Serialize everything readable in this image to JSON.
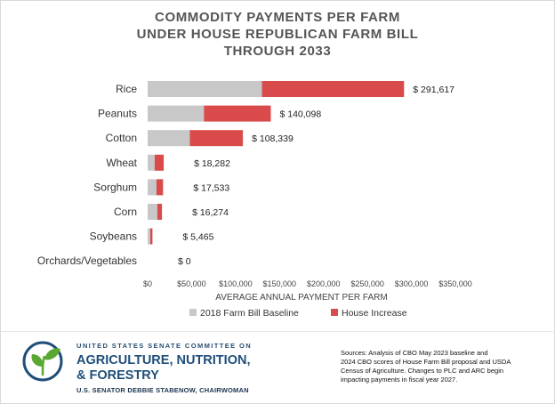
{
  "header": {
    "title_lines": [
      "COMMODITY PAYMENTS PER FARM",
      "UNDER HOUSE REPUBLICAN FARM BILL",
      "THROUGH 2033"
    ]
  },
  "chart_data": {
    "type": "bar",
    "orientation": "horizontal",
    "stacked": true,
    "categories": [
      "Rice",
      "Peanuts",
      "Cotton",
      "Wheat",
      "Sorghum",
      "Corn",
      "Soybeans",
      "Orchards/Vegetables"
    ],
    "series": [
      {
        "name": "2018 Farm Bill Baseline",
        "color": "#c8c8c8",
        "values": [
          130000,
          64000,
          48000,
          8000,
          10000,
          11000,
          3000,
          0
        ]
      },
      {
        "name": "House Increase",
        "color": "#d94b4b",
        "values": [
          161617,
          76098,
          60339,
          10282,
          7533,
          5274,
          2465,
          0
        ]
      }
    ],
    "data_labels": [
      "$ 291,617",
      "$ 140,098",
      "$ 108,339",
      "$ 18,282",
      "$ 17,533",
      "$ 16,274",
      "$ 5,465",
      "$ 0"
    ],
    "xlabel": "AVERAGE ANNUAL PAYMENT PER FARM",
    "xlim": [
      0,
      350000
    ],
    "x_ticks": [
      0,
      50000,
      100000,
      150000,
      200000,
      250000,
      300000,
      350000
    ],
    "x_tick_labels": [
      "$0",
      "$50,000",
      "$100,000",
      "$150,000",
      "$200,000",
      "$250,000",
      "$300,000",
      "$350,000"
    ],
    "grid": false,
    "legend_position": "bottom"
  },
  "footer": {
    "org_line1": "UNITED STATES SENATE COMMITTEE ON",
    "org_line2": "AGRICULTURE, NUTRITION,",
    "org_line3": "& FORESTRY",
    "org_line4": "U.S. SENATOR DEBBIE STABENOW, CHAIRWOMAN",
    "sources_lines": [
      "Sources: Analysis of CBO May 2023 baseline and",
      "2024 CBO scores of House Farm Bill proposal and USDA",
      "Census of Agriculture. Changes to PLC and ARC begin",
      "impacting payments in fiscal year 2027."
    ]
  },
  "colors": {
    "logo_green": "#5aa832",
    "logo_blue": "#1f4e79"
  }
}
